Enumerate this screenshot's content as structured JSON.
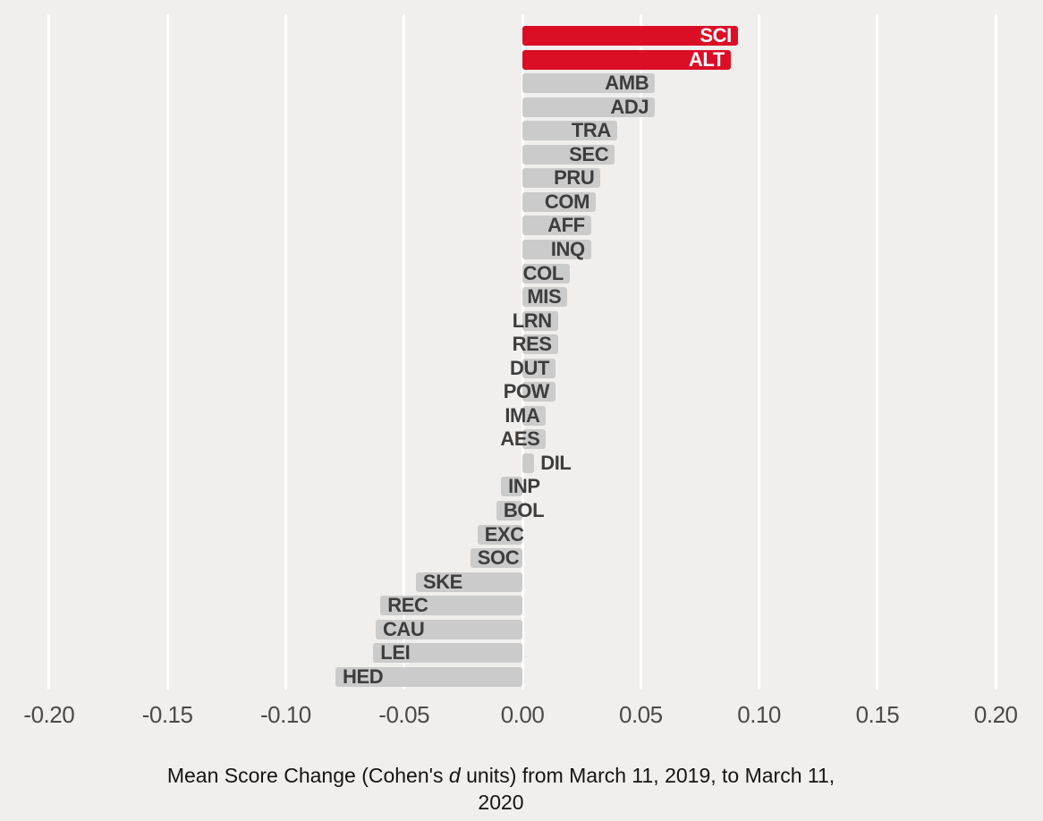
{
  "chart_data": {
    "type": "bar",
    "orientation": "horizontal",
    "title": "",
    "xlabel": "Mean Score Change (Cohen's d units) from March 11, 2019, to March 11, 2020",
    "ylabel": "",
    "xlim": [
      -0.225,
      0.225
    ],
    "grid": "vertical white gridlines every 0.05 on warm-gray background",
    "legend_position": "none",
    "highlight_color": "#db0e26",
    "default_color": "#cbcbcb",
    "background_color": "#f1efed",
    "xticks": [
      -0.2,
      -0.15,
      -0.1,
      -0.05,
      0.0,
      0.05,
      0.1,
      0.15,
      0.2
    ],
    "xtick_labels": [
      "-0.20",
      "-0.15",
      "-0.10",
      "-0.05",
      "0.00",
      "0.05",
      "0.10",
      "0.15",
      "0.20"
    ],
    "categories": [
      "SCI",
      "ALT",
      "AMB",
      "ADJ",
      "TRA",
      "SEC",
      "PRU",
      "COM",
      "AFF",
      "INQ",
      "COL",
      "MIS",
      "LRN",
      "RES",
      "DUT",
      "POW",
      "IMA",
      "AES",
      "DIL",
      "INP",
      "BOL",
      "EXC",
      "SOC",
      "SKE",
      "REC",
      "CAU",
      "LEI",
      "HED"
    ],
    "values": [
      0.091,
      0.088,
      0.056,
      0.056,
      0.04,
      0.039,
      0.033,
      0.031,
      0.029,
      0.029,
      0.02,
      0.019,
      0.015,
      0.015,
      0.014,
      0.014,
      0.01,
      0.01,
      0.005,
      -0.009,
      -0.011,
      -0.019,
      -0.022,
      -0.045,
      -0.06,
      -0.062,
      -0.063,
      -0.079
    ],
    "bars": [
      {
        "label": "SCI",
        "value": 0.091,
        "highlight": true
      },
      {
        "label": "ALT",
        "value": 0.088,
        "highlight": true
      },
      {
        "label": "AMB",
        "value": 0.056,
        "highlight": false
      },
      {
        "label": "ADJ",
        "value": 0.056,
        "highlight": false
      },
      {
        "label": "TRA",
        "value": 0.04,
        "highlight": false
      },
      {
        "label": "SEC",
        "value": 0.039,
        "highlight": false
      },
      {
        "label": "PRU",
        "value": 0.033,
        "highlight": false
      },
      {
        "label": "COM",
        "value": 0.031,
        "highlight": false
      },
      {
        "label": "AFF",
        "value": 0.029,
        "highlight": false
      },
      {
        "label": "INQ",
        "value": 0.029,
        "highlight": false
      },
      {
        "label": "COL",
        "value": 0.02,
        "highlight": false
      },
      {
        "label": "MIS",
        "value": 0.019,
        "highlight": false
      },
      {
        "label": "LRN",
        "value": 0.015,
        "highlight": false
      },
      {
        "label": "RES",
        "value": 0.015,
        "highlight": false
      },
      {
        "label": "DUT",
        "value": 0.014,
        "highlight": false
      },
      {
        "label": "POW",
        "value": 0.014,
        "highlight": false
      },
      {
        "label": "IMA",
        "value": 0.01,
        "highlight": false
      },
      {
        "label": "AES",
        "value": 0.01,
        "highlight": false
      },
      {
        "label": "DIL",
        "value": 0.005,
        "highlight": false,
        "label_outside": true
      },
      {
        "label": "INP",
        "value": -0.009,
        "highlight": false
      },
      {
        "label": "BOL",
        "value": -0.011,
        "highlight": false
      },
      {
        "label": "EXC",
        "value": -0.019,
        "highlight": false
      },
      {
        "label": "SOC",
        "value": -0.022,
        "highlight": false
      },
      {
        "label": "SKE",
        "value": -0.045,
        "highlight": false
      },
      {
        "label": "REC",
        "value": -0.06,
        "highlight": false
      },
      {
        "label": "CAU",
        "value": -0.062,
        "highlight": false
      },
      {
        "label": "LEI",
        "value": -0.063,
        "highlight": false
      },
      {
        "label": "HED",
        "value": -0.079,
        "highlight": false
      }
    ]
  },
  "caption": {
    "line1_pre": "Mean Score Change (Cohen's ",
    "italic_word": "d",
    "line1_post": " units) from March 11, 2019, to March 11,",
    "line2": "2020"
  }
}
